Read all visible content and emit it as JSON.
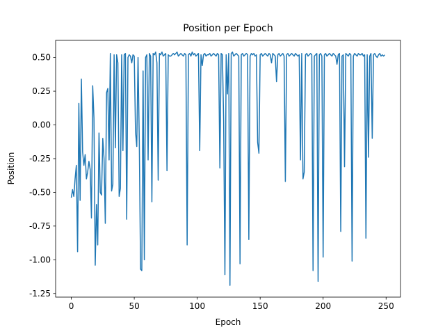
{
  "chart_data": {
    "type": "line",
    "title": "Position per Epoch",
    "x_label": "Epoch",
    "y_label": "Position",
    "xlim": [
      -12.45,
      261.45
    ],
    "ylim": [
      -1.277,
      0.627
    ],
    "xticks": [
      0,
      50,
      100,
      150,
      200,
      250
    ],
    "yticks": [
      {
        "value": 0.5,
        "label": "0.50"
      },
      0.25,
      {
        "value": 0,
        "label": "0.00"
      },
      -0.25,
      {
        "value": -0.5,
        "label": "-0.50"
      },
      -0.75,
      {
        "value": -1,
        "label": "-1.00"
      },
      -1.25
    ],
    "x": [
      0,
      1,
      2,
      3,
      4,
      5,
      6,
      7,
      8,
      9,
      10,
      11,
      12,
      13,
      14,
      15,
      16,
      17,
      18,
      19,
      20,
      21,
      22,
      23,
      24,
      25,
      26,
      27,
      28,
      29,
      30,
      31,
      32,
      33,
      34,
      35,
      36,
      37,
      38,
      39,
      40,
      41,
      42,
      43,
      44,
      45,
      46,
      47,
      48,
      49,
      50,
      51,
      52,
      53,
      54,
      55,
      56,
      57,
      58,
      59,
      60,
      61,
      62,
      63,
      64,
      65,
      66,
      67,
      68,
      69,
      70,
      71,
      72,
      73,
      74,
      75,
      76,
      77,
      78,
      79,
      80,
      81,
      82,
      83,
      84,
      85,
      86,
      87,
      88,
      89,
      90,
      91,
      92,
      93,
      94,
      95,
      96,
      97,
      98,
      99,
      100,
      101,
      102,
      103,
      104,
      105,
      106,
      107,
      108,
      109,
      110,
      111,
      112,
      113,
      114,
      115,
      116,
      117,
      118,
      119,
      120,
      121,
      122,
      123,
      124,
      125,
      126,
      127,
      128,
      129,
      130,
      131,
      132,
      133,
      134,
      135,
      136,
      137,
      138,
      139,
      140,
      141,
      142,
      143,
      144,
      145,
      146,
      147,
      148,
      149,
      150,
      151,
      152,
      153,
      154,
      155,
      156,
      157,
      158,
      159,
      160,
      161,
      162,
      163,
      164,
      165,
      166,
      167,
      168,
      169,
      170,
      171,
      172,
      173,
      174,
      175,
      176,
      177,
      178,
      179,
      180,
      181,
      182,
      183,
      184,
      185,
      186,
      187,
      188,
      189,
      190,
      191,
      192,
      193,
      194,
      195,
      196,
      197,
      198,
      199,
      200,
      201,
      202,
      203,
      204,
      205,
      206,
      207,
      208,
      209,
      210,
      211,
      212,
      213,
      214,
      215,
      216,
      217,
      218,
      219,
      220,
      221,
      222,
      223,
      224,
      225,
      226,
      227,
      228,
      229,
      230,
      231,
      232,
      233,
      234,
      235,
      236,
      237,
      238,
      239,
      240,
      241,
      242,
      243,
      244,
      245,
      246,
      247,
      248,
      249
    ],
    "series": [
      {
        "color": "#1f77b4",
        "values": [
          -0.54,
          -0.48,
          -0.53,
          -0.4,
          -0.3,
          -0.94,
          0.16,
          -0.56,
          0.34,
          -0.2,
          -0.3,
          -0.22,
          -0.4,
          -0.35,
          -0.27,
          -0.33,
          -0.69,
          0.29,
          0.05,
          -1.04,
          -0.59,
          -0.89,
          -0.06,
          -0.5,
          -0.52,
          -0.1,
          -0.25,
          -0.73,
          0.24,
          0.27,
          -0.26,
          0.53,
          -0.49,
          -0.44,
          0.52,
          -0.17,
          0.52,
          0.46,
          -0.53,
          -0.47,
          0.52,
          -0.19,
          0.52,
          0.53,
          -0.7,
          0.5,
          0.52,
          0.51,
          0.46,
          0.52,
          0.51,
          -0.05,
          -0.16,
          0.5,
          -0.12,
          -1.07,
          -1.08,
          0.4,
          -1.0,
          0.5,
          0.52,
          -0.26,
          0.53,
          0.51,
          -0.57,
          0.53,
          0.52,
          0.54,
          0.46,
          -0.41,
          0.53,
          0.52,
          0.54,
          0.51,
          0.52,
          0.53,
          -0.34,
          0.52,
          0.51,
          0.51,
          0.52,
          0.53,
          0.52,
          0.53,
          0.54,
          0.51,
          0.52,
          0.53,
          0.52,
          0.51,
          0.53,
          0.52,
          -0.89,
          0.52,
          0.53,
          0.51,
          0.54,
          0.52,
          0.53,
          0.51,
          0.52,
          0.53,
          -0.19,
          0.52,
          0.44,
          0.52,
          0.53,
          0.51,
          0.52,
          0.52,
          0.53,
          0.51,
          0.52,
          0.53,
          0.52,
          0.51,
          0.53,
          0.52,
          -0.32,
          0.53,
          0.52,
          0.03,
          -1.11,
          0.52,
          0.23,
          0.53,
          -1.19,
          0.53,
          0.54,
          0.51,
          0.52,
          0.53,
          0.52,
          0.51,
          -1.03,
          0.52,
          0.53,
          0.51,
          0.52,
          0.53,
          0.52,
          -0.85,
          0.51,
          0.53,
          0.52,
          0.53,
          0.51,
          0.52,
          -0.13,
          -0.21,
          0.52,
          0.53,
          0.51,
          0.52,
          0.53,
          0.52,
          0.51,
          0.53,
          0.52,
          0.46,
          0.53,
          0.52,
          0.51,
          0.32,
          0.52,
          0.53,
          0.51,
          0.52,
          0.53,
          0.51,
          -0.42,
          0.52,
          0.53,
          0.51,
          0.52,
          0.53,
          0.52,
          0.51,
          0.53,
          0.52,
          0.51,
          0.52,
          -0.26,
          0.53,
          -0.4,
          -0.35,
          0.52,
          0.53,
          0.51,
          0.52,
          0.53,
          0.52,
          -1.08,
          0.51,
          0.52,
          0.53,
          -1.16,
          0.52,
          0.53,
          0.51,
          -0.98,
          0.52,
          0.53,
          0.51,
          0.52,
          0.53,
          0.52,
          0.51,
          0.53,
          0.52,
          0.51,
          0.45,
          0.52,
          0.53,
          -0.79,
          0.51,
          0.52,
          -0.31,
          0.53,
          0.52,
          0.51,
          0.53,
          0.52,
          -1.01,
          0.51,
          0.53,
          0.52,
          0.51,
          0.53,
          0.52,
          0.52,
          0.53,
          0.51,
          0.52,
          -0.84,
          0.52,
          -0.24,
          0.51,
          0.53,
          -0.1,
          0.52,
          0.53,
          0.51,
          0.5,
          0.52,
          0.53,
          0.51,
          0.52,
          0.51,
          0.52
        ]
      }
    ]
  }
}
